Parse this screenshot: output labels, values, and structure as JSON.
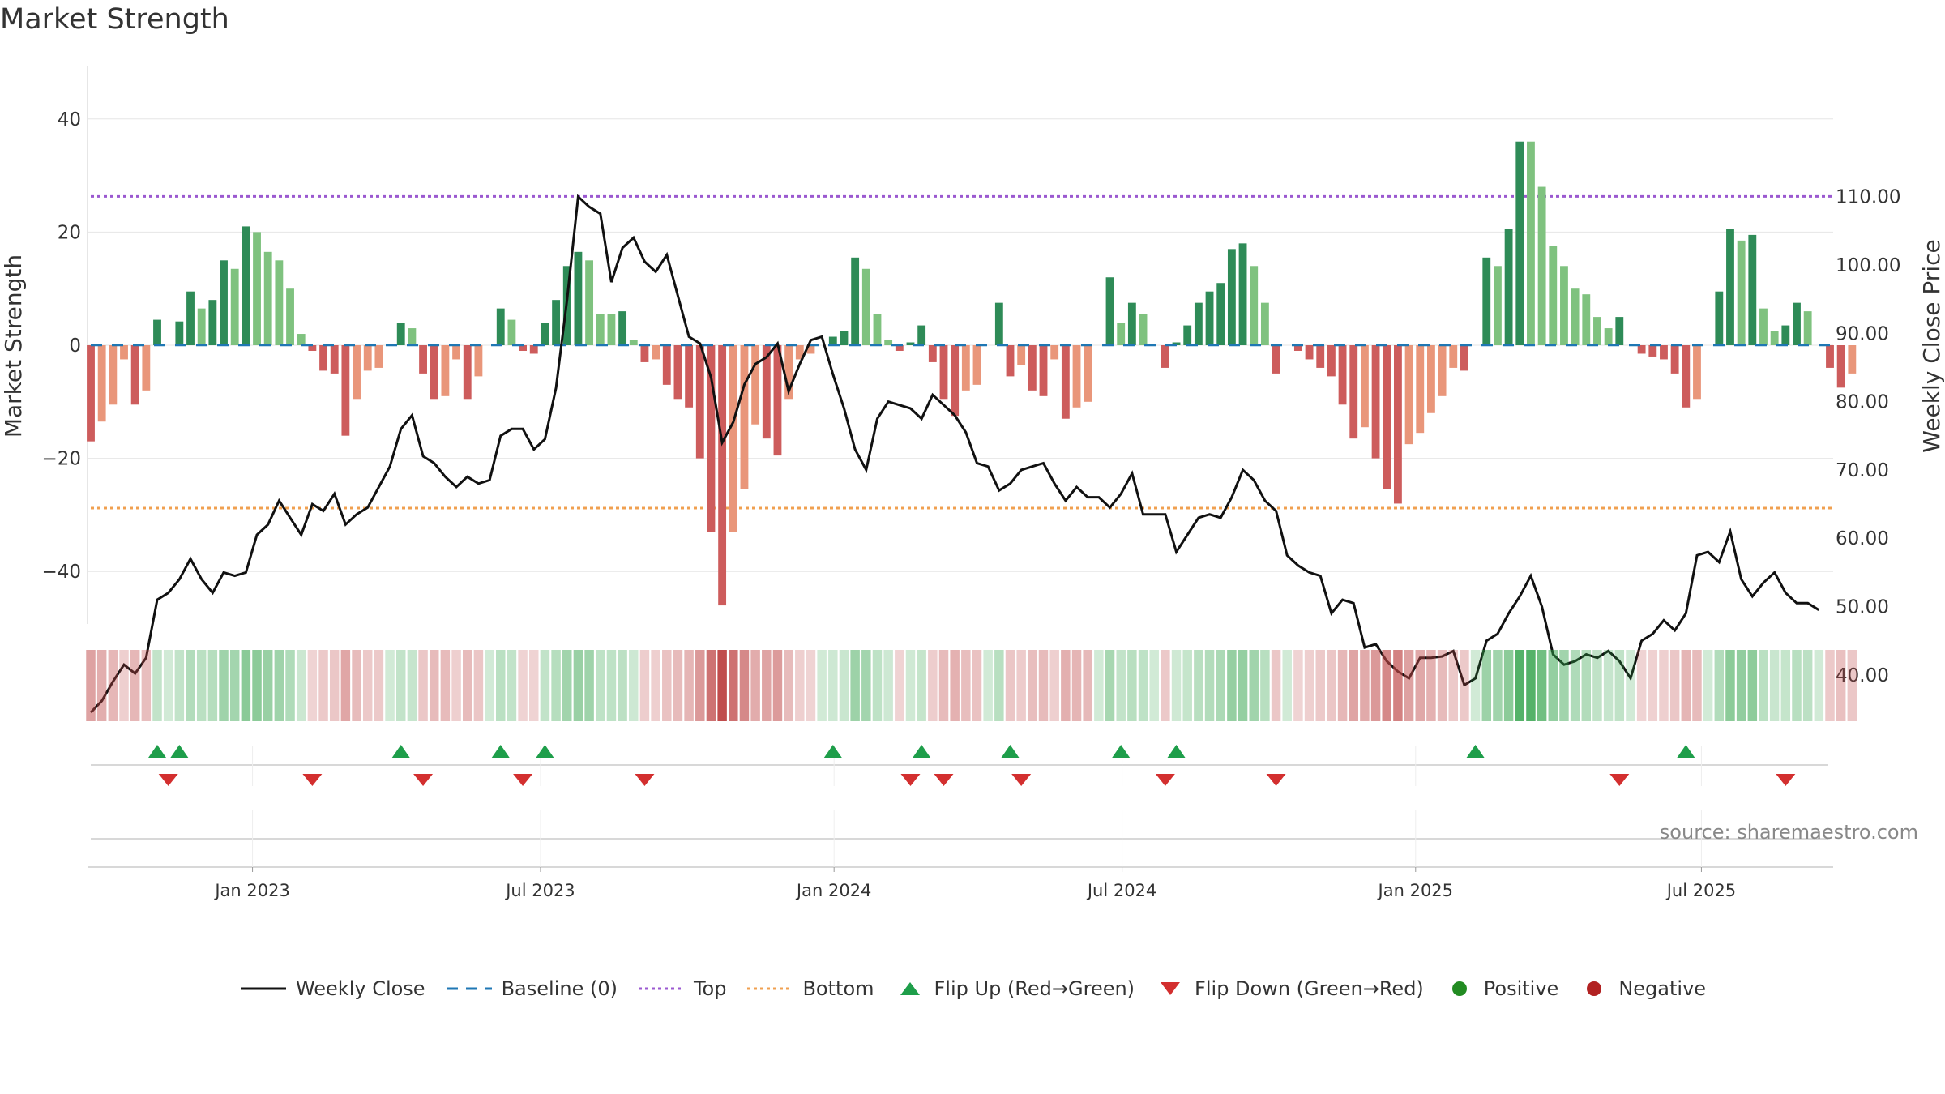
{
  "title": "Market Strength",
  "source": "source: sharemaestro.com",
  "colors": {
    "pos_dark": "#2e8b57",
    "pos_light": "#7fc27f",
    "neg_dark": "#cd5c5c",
    "neg_light": "#e9967a",
    "top_line": "#9b59d0",
    "bottom_line": "#f0a050",
    "baseline": "#1f77b4",
    "close": "#111111",
    "flip_up": "#1e9e4a",
    "flip_down": "#d32f2f",
    "positive_dot": "#228b22",
    "negative_dot": "#b22222"
  },
  "legend": [
    {
      "label": "Weekly Close",
      "icon": "line-solid-icon"
    },
    {
      "label": "Baseline (0)",
      "icon": "line-dashed-icon"
    },
    {
      "label": "Top",
      "icon": "line-dotted-purple-icon"
    },
    {
      "label": "Bottom",
      "icon": "line-dotted-orange-icon"
    },
    {
      "label": "Flip Up (Red→Green)",
      "icon": "triangle-up-icon"
    },
    {
      "label": "Flip Down (Green→Red)",
      "icon": "triangle-down-icon"
    },
    {
      "label": "Positive",
      "icon": "green-dot-icon"
    },
    {
      "label": "Negative",
      "icon": "red-dot-icon"
    }
  ],
  "chart_data": {
    "type": "bar+line",
    "title": "Market Strength",
    "ylabel_left": "Market Strength",
    "ylabel_right": "Weekly Close Price",
    "ylim_left": [
      -50,
      50
    ],
    "ylim_right": [
      32,
      113
    ],
    "yticks_left": [
      40,
      20,
      0,
      -20,
      -40
    ],
    "ytick_labels_left": [
      "40",
      "20",
      "0",
      "−20",
      "−40"
    ],
    "yticks_right": [
      110,
      100,
      90,
      80,
      70,
      60,
      50,
      40
    ],
    "ytick_labels_right": [
      "110.00",
      "100.00",
      "90.00",
      "80.00",
      "70.00",
      "60.00",
      "50.00",
      "40.00"
    ],
    "top_level": 26.3,
    "bottom_level": -28.8,
    "x_range_weeks": [
      0,
      157
    ],
    "x_tick_weeks": [
      14.6,
      40.6,
      67.1,
      93.1,
      119.6,
      145.4
    ],
    "x_tick_labels": [
      "Jan 2023",
      "Jul 2023",
      "Jan 2024",
      "Jul 2024",
      "Jan 2025",
      "Jul 2025"
    ],
    "strength": [
      -17,
      -13.5,
      -10.5,
      -2.5,
      -10.5,
      -8,
      4.5,
      0,
      4.2,
      9.5,
      6.5,
      8,
      15,
      13.5,
      21,
      20,
      16.5,
      15,
      10,
      2,
      -1,
      -4.5,
      -5,
      -16,
      -9.5,
      -4.5,
      -4,
      0,
      4,
      3,
      -5,
      -9.5,
      -9,
      -2.5,
      -9.5,
      -5.5,
      0,
      6.5,
      4.5,
      -1,
      -1.5,
      4,
      8,
      14,
      16.5,
      15,
      5.5,
      5.5,
      6,
      1,
      -3,
      -2.5,
      -7,
      -9.5,
      -11,
      -20,
      -33,
      -46,
      -33,
      -25.5,
      -14,
      -16.5,
      -19.5,
      -9.5,
      -2.5,
      -1.5,
      0,
      1.5,
      2.5,
      15.5,
      13.5,
      5.5,
      1,
      -1,
      0.5,
      3.5,
      -3,
      -9.5,
      -12.5,
      -8,
      -7,
      0,
      7.5,
      -5.5,
      -3.5,
      -8,
      -9,
      -2.5,
      -13,
      -11,
      -10,
      0,
      12,
      4,
      7.5,
      5.5,
      0,
      -4,
      0.5,
      3.5,
      7.5,
      9.5,
      11,
      17,
      18,
      14,
      7.5,
      -5,
      0,
      -1,
      -2.5,
      -4,
      -5.5,
      -10.5,
      -16.5,
      -14.5,
      -20,
      -25.5,
      -28,
      -17.5,
      -15.5,
      -12,
      -9,
      -4,
      -4.5,
      0,
      15.5,
      14,
      20.5,
      36,
      36,
      28,
      17.5,
      14,
      10,
      9,
      5,
      3,
      5,
      0,
      -1.5,
      -2,
      -2.5,
      -5,
      -11,
      -9.5,
      0,
      9.5,
      20.5,
      18.5,
      19.5,
      6.5,
      2.5,
      3.5,
      7.5,
      6,
      0,
      -4,
      -7.5,
      -5
    ],
    "close": [
      34.5,
      36.2,
      39,
      41.5,
      40.2,
      42.5,
      51,
      52,
      54,
      57,
      54,
      52,
      55,
      54.5,
      55,
      60.5,
      62,
      65.5,
      63,
      60.5,
      65,
      64,
      66.5,
      62,
      63.5,
      64.5,
      67.5,
      70.5,
      76,
      78,
      72,
      71,
      69,
      67.5,
      69,
      68,
      68.5,
      75,
      76,
      76,
      73,
      74.5,
      82,
      95,
      110,
      108.5,
      107.5,
      97.5,
      102.5,
      104,
      100.5,
      99,
      101.5,
      95.5,
      89.5,
      88.5,
      83.5,
      74,
      77,
      82.5,
      85.5,
      86.5,
      88.5,
      81.5,
      85.5,
      89,
      89.5,
      84,
      79,
      73,
      70,
      77.5,
      80,
      79.5,
      79,
      77.5,
      81,
      79.5,
      78,
      75.5,
      71,
      70.5,
      67,
      68,
      70,
      70.5,
      71,
      68,
      65.5,
      67.5,
      66,
      66,
      64.5,
      66.5,
      69.5,
      63.5,
      63.5,
      63.5,
      58,
      60.5,
      63,
      63.5,
      63,
      66,
      70,
      68.5,
      65.5,
      64,
      57.5,
      56,
      55,
      54.5,
      49,
      51,
      50.5,
      44,
      44.5,
      42,
      40.5,
      39.5,
      42.5,
      42.5,
      42.7,
      43.5,
      38.5,
      39.5,
      45,
      46,
      49,
      51.5,
      54.5,
      50,
      43,
      41.5,
      42,
      43,
      42.5,
      43.5,
      42,
      39.5,
      45,
      46,
      48,
      46.5,
      49,
      57.5,
      58,
      56.5,
      61,
      54,
      51.5,
      53.5,
      55,
      52,
      50.5,
      50.5,
      49.5
    ],
    "flip_up_weeks": [
      6,
      8,
      28,
      37,
      41,
      67,
      75,
      83,
      93,
      98,
      125,
      144
    ],
    "flip_down_weeks": [
      7,
      20,
      30,
      39,
      50,
      74,
      77,
      84,
      97,
      107,
      138,
      153
    ],
    "positive_label": "Positive",
    "negative_label": "Negative"
  }
}
